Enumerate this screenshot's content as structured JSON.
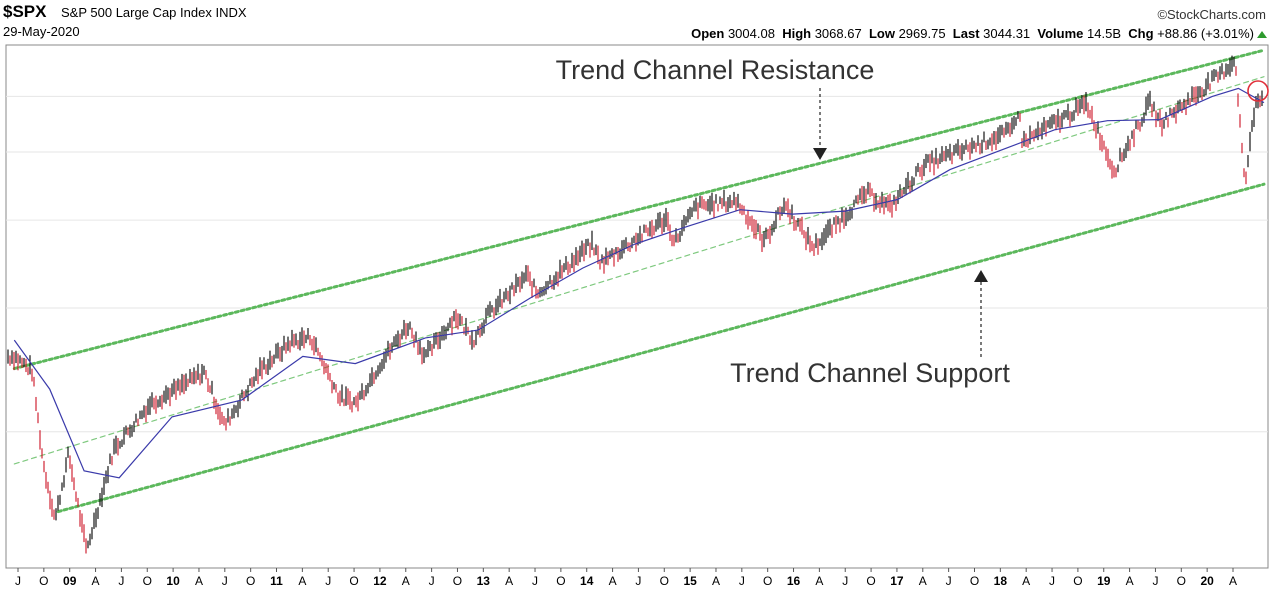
{
  "header": {
    "symbol": "$SPX",
    "name": "S&P 500 Large Cap Index",
    "exchange": "INDX",
    "date": "29-May-2020",
    "brand": "©StockCharts.com",
    "open_label": "Open",
    "open": "3004.08",
    "high_label": "High",
    "high": "3068.67",
    "low_label": "Low",
    "low": "2969.75",
    "last_label": "Last",
    "last": "3044.31",
    "volume_label": "Volume",
    "volume": "14.5B",
    "chg_label": "Chg",
    "chg": "+88.86 (+3.01%)"
  },
  "annotations": {
    "resistance": "Trend Channel Resistance",
    "support": "Trend Channel Support"
  },
  "chart_data": {
    "type": "line",
    "title": "$SPX S&P 500 Large Cap Index INDX",
    "log_scale": true,
    "grid": true,
    "x_ticks": [
      {
        "label": "J",
        "year": false
      },
      {
        "label": "O",
        "year": false
      },
      {
        "label": "09",
        "year": true
      },
      {
        "label": "A",
        "year": false
      },
      {
        "label": "J",
        "year": false
      },
      {
        "label": "O",
        "year": false
      },
      {
        "label": "10",
        "year": true
      },
      {
        "label": "A",
        "year": false
      },
      {
        "label": "J",
        "year": false
      },
      {
        "label": "O",
        "year": false
      },
      {
        "label": "11",
        "year": true
      },
      {
        "label": "A",
        "year": false
      },
      {
        "label": "J",
        "year": false
      },
      {
        "label": "O",
        "year": false
      },
      {
        "label": "12",
        "year": true
      },
      {
        "label": "A",
        "year": false
      },
      {
        "label": "J",
        "year": false
      },
      {
        "label": "O",
        "year": false
      },
      {
        "label": "13",
        "year": true
      },
      {
        "label": "A",
        "year": false
      },
      {
        "label": "J",
        "year": false
      },
      {
        "label": "O",
        "year": false
      },
      {
        "label": "14",
        "year": true
      },
      {
        "label": "A",
        "year": false
      },
      {
        "label": "J",
        "year": false
      },
      {
        "label": "O",
        "year": false
      },
      {
        "label": "15",
        "year": true
      },
      {
        "label": "A",
        "year": false
      },
      {
        "label": "J",
        "year": false
      },
      {
        "label": "O",
        "year": false
      },
      {
        "label": "16",
        "year": true
      },
      {
        "label": "A",
        "year": false
      },
      {
        "label": "J",
        "year": false
      },
      {
        "label": "O",
        "year": false
      },
      {
        "label": "17",
        "year": true
      },
      {
        "label": "A",
        "year": false
      },
      {
        "label": "J",
        "year": false
      },
      {
        "label": "O",
        "year": false
      },
      {
        "label": "18",
        "year": true
      },
      {
        "label": "A",
        "year": false
      },
      {
        "label": "J",
        "year": false
      },
      {
        "label": "O",
        "year": false
      },
      {
        "label": "19",
        "year": true
      },
      {
        "label": "A",
        "year": false
      },
      {
        "label": "J",
        "year": false
      },
      {
        "label": "O",
        "year": false
      },
      {
        "label": "20",
        "year": true
      },
      {
        "label": "A",
        "year": false
      }
    ],
    "price_series": [
      [
        "2008-07-01",
        1280
      ],
      [
        "2008-09-01",
        1220
      ],
      [
        "2008-10-10",
        900
      ],
      [
        "2008-11-20",
        750
      ],
      [
        "2009-01-06",
        930
      ],
      [
        "2009-03-09",
        677
      ],
      [
        "2009-06-12",
        945
      ],
      [
        "2009-10-19",
        1100
      ],
      [
        "2010-01-19",
        1150
      ],
      [
        "2010-04-23",
        1217
      ],
      [
        "2010-07-02",
        1022
      ],
      [
        "2010-11-05",
        1225
      ],
      [
        "2011-02-18",
        1343
      ],
      [
        "2011-04-29",
        1363
      ],
      [
        "2011-08-08",
        1119
      ],
      [
        "2011-10-03",
        1099
      ],
      [
        "2011-12-30",
        1257
      ],
      [
        "2012-04-02",
        1419
      ],
      [
        "2012-06-01",
        1278
      ],
      [
        "2012-09-14",
        1465
      ],
      [
        "2012-11-15",
        1353
      ],
      [
        "2013-01-02",
        1462
      ],
      [
        "2013-05-21",
        1669
      ],
      [
        "2013-06-24",
        1573
      ],
      [
        "2013-12-31",
        1848
      ],
      [
        "2014-02-03",
        1741
      ],
      [
        "2014-09-18",
        2011
      ],
      [
        "2014-10-15",
        1862
      ],
      [
        "2014-12-29",
        2090
      ],
      [
        "2015-05-21",
        2130
      ],
      [
        "2015-08-24",
        1867
      ],
      [
        "2015-11-03",
        2109
      ],
      [
        "2016-02-11",
        1829
      ],
      [
        "2016-08-15",
        2190
      ],
      [
        "2016-11-04",
        2085
      ],
      [
        "2017-03-01",
        2395
      ],
      [
        "2017-12-29",
        2673
      ],
      [
        "2018-01-26",
        2872
      ],
      [
        "2018-02-08",
        2581
      ],
      [
        "2018-09-20",
        2930
      ],
      [
        "2018-12-24",
        2351
      ],
      [
        "2019-04-30",
        2945
      ],
      [
        "2019-06-03",
        2744
      ],
      [
        "2019-12-31",
        3230
      ],
      [
        "2020-02-19",
        3386
      ],
      [
        "2020-03-23",
        2237
      ],
      [
        "2020-04-29",
        2939
      ],
      [
        "2020-05-29",
        3044
      ]
    ],
    "moving_average": [
      [
        "2008-07-01",
        1350
      ],
      [
        "2008-11-01",
        1150
      ],
      [
        "2009-03-01",
        880
      ],
      [
        "2009-07-01",
        860
      ],
      [
        "2010-01-01",
        1050
      ],
      [
        "2010-09-01",
        1110
      ],
      [
        "2011-04-01",
        1280
      ],
      [
        "2011-10-01",
        1250
      ],
      [
        "2012-06-01",
        1360
      ],
      [
        "2012-12-01",
        1395
      ],
      [
        "2013-06-01",
        1550
      ],
      [
        "2013-12-01",
        1710
      ],
      [
        "2014-06-01",
        1850
      ],
      [
        "2014-12-01",
        1960
      ],
      [
        "2015-06-01",
        2070
      ],
      [
        "2015-12-01",
        2040
      ],
      [
        "2016-06-01",
        2060
      ],
      [
        "2016-12-01",
        2140
      ],
      [
        "2017-06-01",
        2360
      ],
      [
        "2017-12-01",
        2520
      ],
      [
        "2018-06-01",
        2690
      ],
      [
        "2018-12-01",
        2770
      ],
      [
        "2019-06-01",
        2780
      ],
      [
        "2019-12-01",
        3000
      ],
      [
        "2020-03-01",
        3080
      ],
      [
        "2020-05-29",
        2940
      ]
    ],
    "trend_lines": [
      {
        "name": "Trend Channel Resistance",
        "style": "dotted-heavy",
        "color": "#5cb85c"
      },
      {
        "name": "Trend Channel Midline",
        "style": "dashed-light",
        "color": "#7fc97f"
      },
      {
        "name": "Trend Channel Support",
        "style": "dotted-heavy",
        "color": "#5cb85c"
      }
    ],
    "colors": {
      "up": "#000000",
      "down": "#cc1122",
      "moving_average": "#3a3aaa",
      "channel": "#5cb85c",
      "grid": "#e6e6e6",
      "marker": "#e0303a"
    }
  }
}
